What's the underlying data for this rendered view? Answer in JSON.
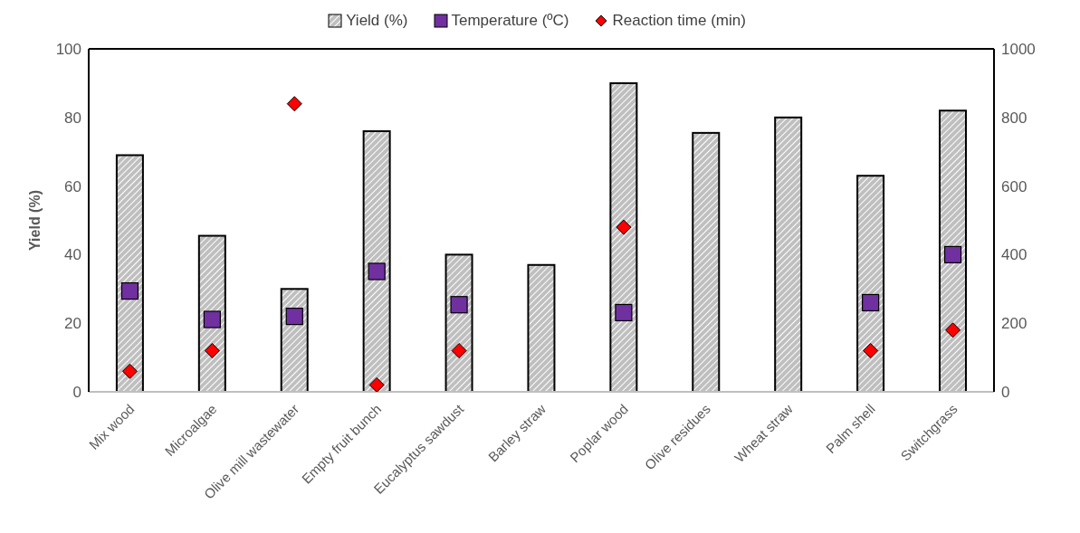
{
  "chart_data": {
    "type": "bar",
    "ylabel": "Yield (%)",
    "categories": [
      "Mix wood",
      "Microalgae",
      "Olive mill wastewater",
      "Empty fruit bunch",
      "Eucalyptus sawdust",
      "Barley straw",
      "Poplar wood",
      "Olive residues",
      "Wheat straw",
      "Palm shell",
      "Switchgrass"
    ],
    "series": [
      {
        "name": "Yield (%)",
        "color": "#bfbfbf",
        "values": [
          69,
          45.5,
          30,
          76,
          40,
          37,
          90,
          75.5,
          80,
          63,
          82
        ]
      },
      {
        "name": "Temperature (ºC)",
        "type": "scatter",
        "axis": "y2",
        "marker": "square",
        "color": "#7030a0",
        "values": [
          294,
          211,
          220,
          351,
          254,
          null,
          231,
          null,
          null,
          260,
          400
        ]
      },
      {
        "name": "Reaction time (min)",
        "type": "scatter",
        "axis": "y2",
        "marker": "diamond",
        "color": "#ff0000",
        "values": [
          60,
          120,
          840,
          20,
          120,
          null,
          480,
          null,
          null,
          120,
          180
        ]
      }
    ],
    "ylim": [
      0,
      100
    ],
    "yticks": [
      0,
      20,
      40,
      60,
      80,
      100
    ],
    "y2lim": [
      0,
      1000
    ],
    "y2ticks": [
      0,
      200,
      400,
      600,
      800,
      1000
    ],
    "grid": false,
    "legend": "top"
  }
}
